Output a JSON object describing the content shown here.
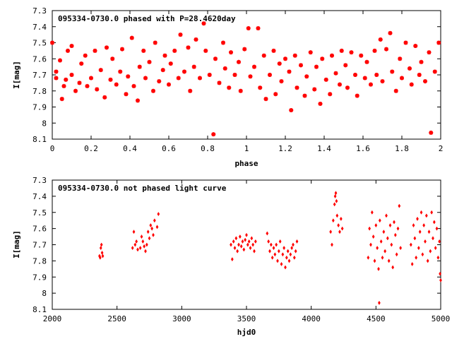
{
  "chart_data": [
    {
      "type": "scatter",
      "title": "095334-0730.0 phased with P=28.4620day",
      "xlabel": "phase",
      "ylabel": "I[mag]",
      "xlim": [
        0,
        2
      ],
      "ylim": [
        8.1,
        7.3
      ],
      "y_inverted": true,
      "xticks": [
        0,
        0.2,
        0.4,
        0.6,
        0.8,
        1,
        1.2,
        1.4,
        1.6,
        1.8,
        2
      ],
      "xtick_labels": [
        "0",
        "0.2",
        "0.4",
        "0.6",
        "0.8",
        "1",
        "1.2",
        "1.4",
        "1.6",
        "1.8",
        "2"
      ],
      "yticks": [
        7.3,
        7.4,
        7.5,
        7.6,
        7.7,
        7.8,
        7.9,
        8,
        8.1
      ],
      "ytick_labels": [
        "7.3",
        "7.4",
        "7.5",
        "7.6",
        "7.7",
        "7.8",
        "7.9",
        "8",
        "8.1"
      ],
      "grid": false,
      "marker_color": "#ff0000",
      "series": [
        {
          "points": [
            [
              0.0,
              7.5
            ],
            [
              0.02,
              7.72
            ],
            [
              0.02,
              7.68
            ],
            [
              0.04,
              7.61
            ],
            [
              0.05,
              7.85
            ],
            [
              0.06,
              7.77
            ],
            [
              0.07,
              7.73
            ],
            [
              0.08,
              7.55
            ],
            [
              0.1,
              7.52
            ],
            [
              0.1,
              7.7
            ],
            [
              0.12,
              7.8
            ],
            [
              0.14,
              7.75
            ],
            [
              0.15,
              7.63
            ],
            [
              0.17,
              7.58
            ],
            [
              0.18,
              7.77
            ],
            [
              0.2,
              7.72
            ],
            [
              0.22,
              7.55
            ],
            [
              0.23,
              7.79
            ],
            [
              0.25,
              7.67
            ],
            [
              0.27,
              7.84
            ],
            [
              0.28,
              7.53
            ],
            [
              0.3,
              7.73
            ],
            [
              0.31,
              7.6
            ],
            [
              0.33,
              7.76
            ],
            [
              0.35,
              7.68
            ],
            [
              0.36,
              7.54
            ],
            [
              0.38,
              7.82
            ],
            [
              0.39,
              7.71
            ],
            [
              0.41,
              7.47
            ],
            [
              0.42,
              7.77
            ],
            [
              0.44,
              7.86
            ],
            [
              0.45,
              7.65
            ],
            [
              0.47,
              7.55
            ],
            [
              0.48,
              7.72
            ],
            [
              0.5,
              7.62
            ],
            [
              0.52,
              7.8
            ],
            [
              0.53,
              7.5
            ],
            [
              0.55,
              7.74
            ],
            [
              0.57,
              7.67
            ],
            [
              0.58,
              7.58
            ],
            [
              0.6,
              7.76
            ],
            [
              0.61,
              7.63
            ],
            [
              0.63,
              7.55
            ],
            [
              0.65,
              7.72
            ],
            [
              0.66,
              7.45
            ],
            [
              0.68,
              7.68
            ],
            [
              0.7,
              7.53
            ],
            [
              0.71,
              7.8
            ],
            [
              0.73,
              7.65
            ],
            [
              0.74,
              7.48
            ],
            [
              0.76,
              7.72
            ],
            [
              0.78,
              7.38
            ],
            [
              0.79,
              7.55
            ],
            [
              0.81,
              7.7
            ],
            [
              0.83,
              8.07
            ],
            [
              0.84,
              7.6
            ],
            [
              0.86,
              7.75
            ],
            [
              0.88,
              7.5
            ],
            [
              0.89,
              7.66
            ],
            [
              0.91,
              7.78
            ],
            [
              0.92,
              7.56
            ],
            [
              0.94,
              7.7
            ],
            [
              0.96,
              7.62
            ],
            [
              0.97,
              7.8
            ],
            [
              0.99,
              7.54
            ],
            [
              1.01,
              7.41
            ],
            [
              1.02,
              7.71
            ],
            [
              1.04,
              7.65
            ],
            [
              1.06,
              7.41
            ],
            [
              1.07,
              7.78
            ],
            [
              1.09,
              7.58
            ],
            [
              1.1,
              7.85
            ],
            [
              1.12,
              7.7
            ],
            [
              1.14,
              7.55
            ],
            [
              1.15,
              7.82
            ],
            [
              1.17,
              7.63
            ],
            [
              1.18,
              7.74
            ],
            [
              1.2,
              7.6
            ],
            [
              1.22,
              7.68
            ],
            [
              1.23,
              7.92
            ],
            [
              1.25,
              7.58
            ],
            [
              1.26,
              7.78
            ],
            [
              1.28,
              7.64
            ],
            [
              1.3,
              7.83
            ],
            [
              1.31,
              7.71
            ],
            [
              1.33,
              7.56
            ],
            [
              1.35,
              7.79
            ],
            [
              1.36,
              7.65
            ],
            [
              1.38,
              7.88
            ],
            [
              1.39,
              7.6
            ],
            [
              1.41,
              7.73
            ],
            [
              1.43,
              7.82
            ],
            [
              1.44,
              7.58
            ],
            [
              1.46,
              7.69
            ],
            [
              1.48,
              7.76
            ],
            [
              1.49,
              7.55
            ],
            [
              1.51,
              7.64
            ],
            [
              1.52,
              7.78
            ],
            [
              1.54,
              7.56
            ],
            [
              1.56,
              7.7
            ],
            [
              1.57,
              7.83
            ],
            [
              1.59,
              7.58
            ],
            [
              1.61,
              7.72
            ],
            [
              1.62,
              7.62
            ],
            [
              1.64,
              7.76
            ],
            [
              1.66,
              7.55
            ],
            [
              1.67,
              7.7
            ],
            [
              1.69,
              7.48
            ],
            [
              1.7,
              7.74
            ],
            [
              1.72,
              7.54
            ],
            [
              1.74,
              7.44
            ],
            [
              1.75,
              7.68
            ],
            [
              1.77,
              7.8
            ],
            [
              1.79,
              7.6
            ],
            [
              1.8,
              7.72
            ],
            [
              1.82,
              7.5
            ],
            [
              1.84,
              7.66
            ],
            [
              1.85,
              7.76
            ],
            [
              1.87,
              7.52
            ],
            [
              1.89,
              7.7
            ],
            [
              1.9,
              7.62
            ],
            [
              1.92,
              7.74
            ],
            [
              1.94,
              7.56
            ],
            [
              1.95,
              8.06
            ],
            [
              1.97,
              7.68
            ],
            [
              1.99,
              7.5
            ]
          ]
        }
      ]
    },
    {
      "type": "scatter",
      "title": "095334-0730.0 not phased light curve",
      "xlabel": "hjd0",
      "ylabel": "I[mag]",
      "xlim": [
        2000,
        5000
      ],
      "ylim": [
        8.1,
        7.3
      ],
      "y_inverted": true,
      "xticks": [
        2000,
        2500,
        3000,
        3500,
        4000,
        4500,
        5000
      ],
      "xtick_labels": [
        "2000",
        "2500",
        "3000",
        "3500",
        "4000",
        "4500",
        "5000"
      ],
      "yticks": [
        7.3,
        7.4,
        7.5,
        7.6,
        7.7,
        7.8,
        7.9,
        8,
        8.1
      ],
      "ytick_labels": [
        "7.3",
        "7.4",
        "7.5",
        "7.6",
        "7.7",
        "7.8",
        "7.9",
        "8",
        "8.1"
      ],
      "grid": false,
      "marker_color": "#ff0000",
      "series": [
        {
          "points": [
            [
              2365,
              7.77
            ],
            [
              2370,
              7.78
            ],
            [
              2375,
              7.72
            ],
            [
              2380,
              7.7
            ],
            [
              2385,
              7.75
            ],
            [
              2390,
              7.77
            ],
            [
              2620,
              7.72
            ],
            [
              2630,
              7.62
            ],
            [
              2640,
              7.7
            ],
            [
              2650,
              7.68
            ],
            [
              2660,
              7.73
            ],
            [
              2680,
              7.72
            ],
            [
              2690,
              7.65
            ],
            [
              2700,
              7.68
            ],
            [
              2710,
              7.71
            ],
            [
              2720,
              7.74
            ],
            [
              2730,
              7.7
            ],
            [
              2740,
              7.62
            ],
            [
              2750,
              7.66
            ],
            [
              2760,
              7.58
            ],
            [
              2770,
              7.6
            ],
            [
              2780,
              7.64
            ],
            [
              2790,
              7.55
            ],
            [
              2810,
              7.59
            ],
            [
              2820,
              7.51
            ],
            [
              3380,
              7.7
            ],
            [
              3390,
              7.79
            ],
            [
              3400,
              7.68
            ],
            [
              3410,
              7.72
            ],
            [
              3420,
              7.66
            ],
            [
              3430,
              7.74
            ],
            [
              3440,
              7.7
            ],
            [
              3450,
              7.65
            ],
            [
              3460,
              7.71
            ],
            [
              3470,
              7.68
            ],
            [
              3480,
              7.73
            ],
            [
              3490,
              7.67
            ],
            [
              3500,
              7.64
            ],
            [
              3510,
              7.7
            ],
            [
              3520,
              7.68
            ],
            [
              3530,
              7.72
            ],
            [
              3540,
              7.66
            ],
            [
              3550,
              7.7
            ],
            [
              3560,
              7.74
            ],
            [
              3570,
              7.68
            ],
            [
              3660,
              7.63
            ],
            [
              3670,
              7.68
            ],
            [
              3680,
              7.74
            ],
            [
              3690,
              7.7
            ],
            [
              3700,
              7.78
            ],
            [
              3710,
              7.72
            ],
            [
              3720,
              7.76
            ],
            [
              3730,
              7.7
            ],
            [
              3740,
              7.8
            ],
            [
              3750,
              7.74
            ],
            [
              3760,
              7.68
            ],
            [
              3770,
              7.82
            ],
            [
              3780,
              7.76
            ],
            [
              3790,
              7.72
            ],
            [
              3800,
              7.84
            ],
            [
              3810,
              7.78
            ],
            [
              3820,
              7.74
            ],
            [
              3830,
              7.8
            ],
            [
              3840,
              7.76
            ],
            [
              3850,
              7.72
            ],
            [
              3860,
              7.7
            ],
            [
              3870,
              7.78
            ],
            [
              3880,
              7.74
            ],
            [
              3890,
              7.68
            ],
            [
              4150,
              7.62
            ],
            [
              4160,
              7.7
            ],
            [
              4170,
              7.55
            ],
            [
              4180,
              7.45
            ],
            [
              4185,
              7.4
            ],
            [
              4190,
              7.38
            ],
            [
              4195,
              7.43
            ],
            [
              4200,
              7.52
            ],
            [
              4210,
              7.58
            ],
            [
              4220,
              7.62
            ],
            [
              4230,
              7.54
            ],
            [
              4240,
              7.6
            ],
            [
              4440,
              7.78
            ],
            [
              4450,
              7.6
            ],
            [
              4460,
              7.7
            ],
            [
              4470,
              7.5
            ],
            [
              4480,
              7.65
            ],
            [
              4490,
              7.8
            ],
            [
              4500,
              7.58
            ],
            [
              4510,
              7.72
            ],
            [
              4520,
              7.85
            ],
            [
              4525,
              8.06
            ],
            [
              4530,
              7.55
            ],
            [
              4540,
              7.68
            ],
            [
              4550,
              7.78
            ],
            [
              4560,
              7.62
            ],
            [
              4570,
              7.74
            ],
            [
              4580,
              7.52
            ],
            [
              4590,
              7.66
            ],
            [
              4600,
              7.8
            ],
            [
              4610,
              7.58
            ],
            [
              4620,
              7.7
            ],
            [
              4630,
              7.84
            ],
            [
              4640,
              7.56
            ],
            [
              4650,
              7.64
            ],
            [
              4660,
              7.76
            ],
            [
              4670,
              7.6
            ],
            [
              4680,
              7.46
            ],
            [
              4690,
              7.72
            ],
            [
              4770,
              7.7
            ],
            [
              4780,
              7.82
            ],
            [
              4790,
              7.58
            ],
            [
              4800,
              7.66
            ],
            [
              4810,
              7.78
            ],
            [
              4820,
              7.54
            ],
            [
              4830,
              7.72
            ],
            [
              4840,
              7.62
            ],
            [
              4850,
              7.5
            ],
            [
              4860,
              7.76
            ],
            [
              4870,
              7.58
            ],
            [
              4880,
              7.68
            ],
            [
              4890,
              7.52
            ],
            [
              4900,
              7.8
            ],
            [
              4910,
              7.62
            ],
            [
              4920,
              7.74
            ],
            [
              4930,
              7.5
            ],
            [
              4940,
              7.66
            ],
            [
              4950,
              7.56
            ],
            [
              4960,
              7.72
            ],
            [
              4970,
              7.6
            ],
            [
              4980,
              7.78
            ],
            [
              4990,
              7.68
            ],
            [
              4995,
              7.88
            ],
            [
              5000,
              7.92
            ]
          ]
        }
      ]
    }
  ]
}
